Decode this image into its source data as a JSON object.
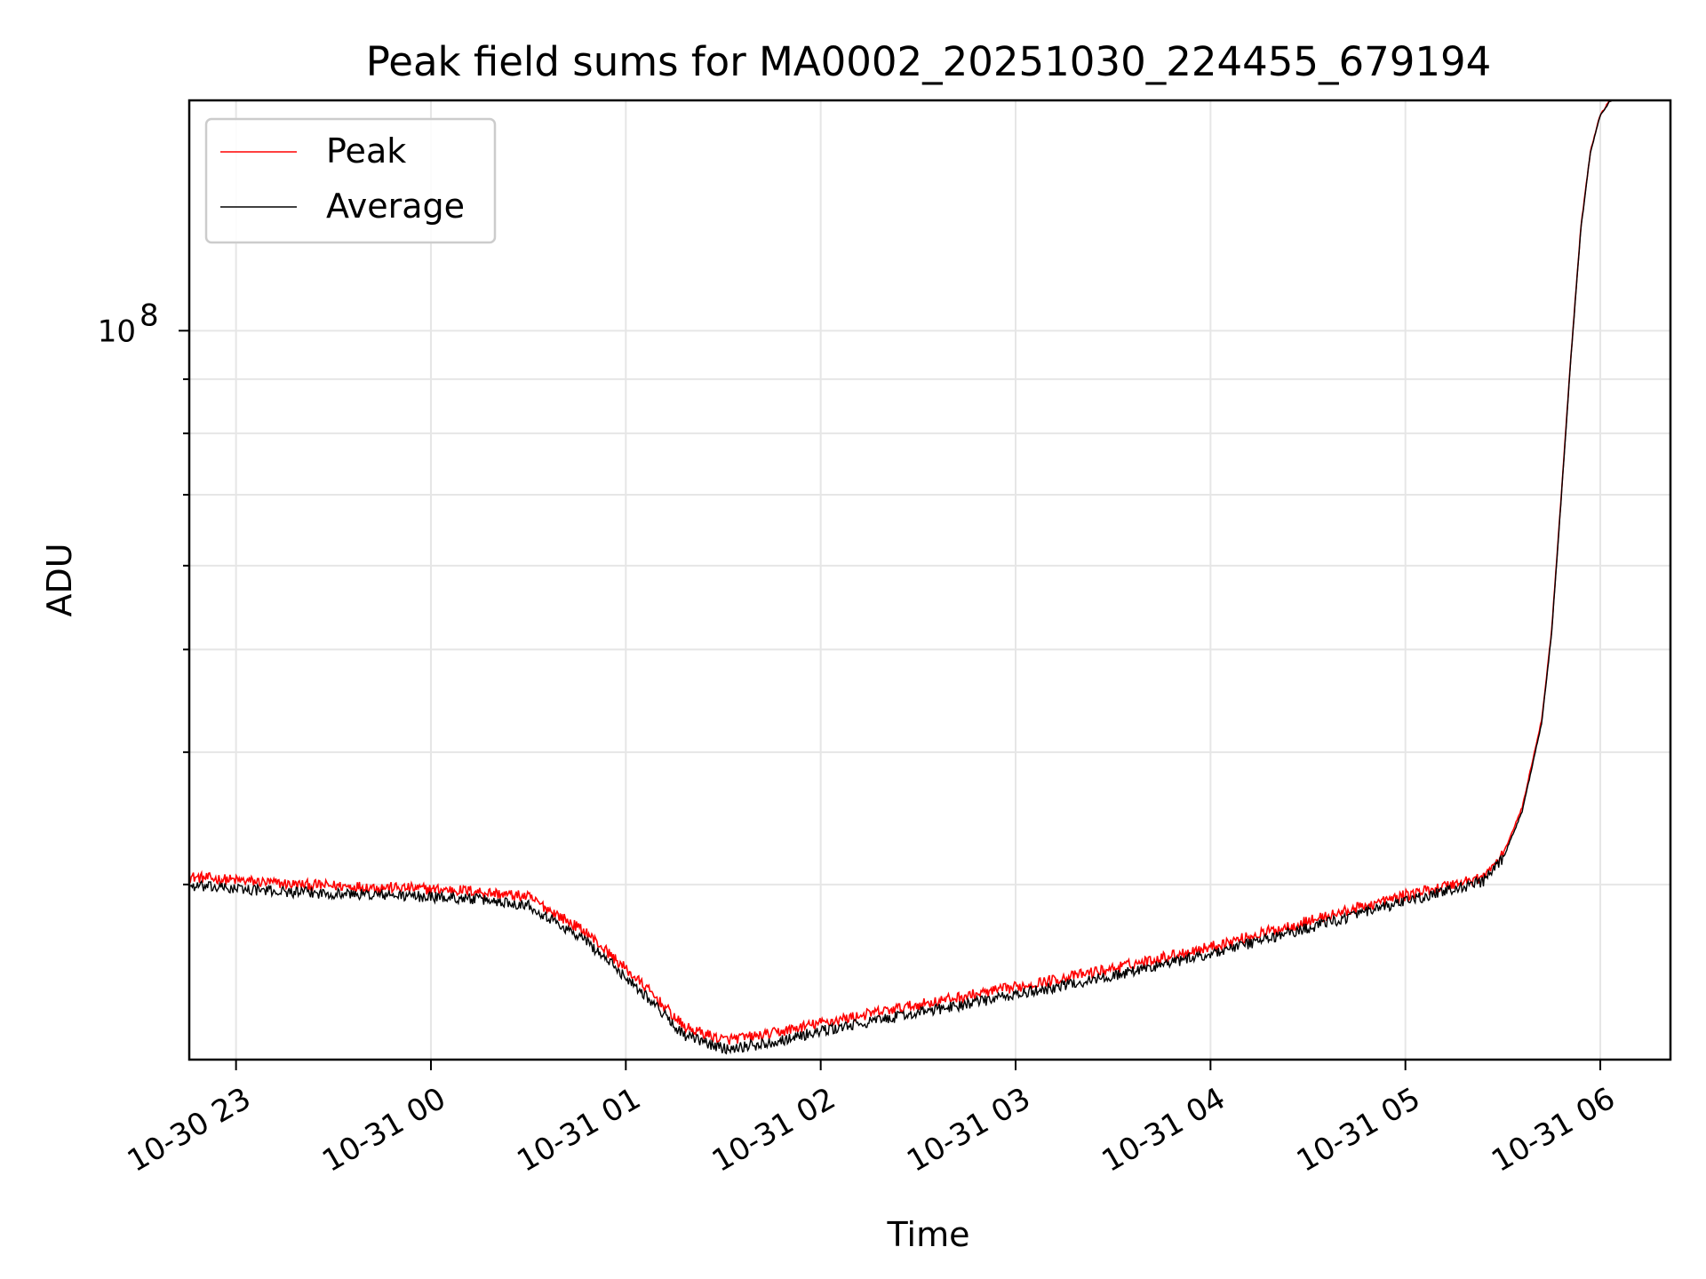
{
  "chart_data": {
    "type": "line",
    "title": "Peak field sums for MA0002_20251030_224455_679194",
    "xlabel": "Time",
    "ylabel": "ADU",
    "yscale": "log",
    "grid": true,
    "legend_position": "top-left",
    "x_range_hours": [
      -0.24,
      7.36
    ],
    "y_range": [
      20500000,
      165000000
    ],
    "x_ticks": [
      {
        "value": 0,
        "label": "10-30 23"
      },
      {
        "value": 1,
        "label": "10-31 00"
      },
      {
        "value": 2,
        "label": "10-31 01"
      },
      {
        "value": 3,
        "label": "10-31 02"
      },
      {
        "value": 4,
        "label": "10-31 03"
      },
      {
        "value": 5,
        "label": "10-31 04"
      },
      {
        "value": 6,
        "label": "10-31 05"
      },
      {
        "value": 7,
        "label": "10-31 06"
      }
    ],
    "y_major_ticks": [
      {
        "value": 100000000,
        "base": "10",
        "exponent": "8"
      }
    ],
    "y_minor_ticks": [
      30000000,
      40000000,
      50000000,
      60000000,
      70000000,
      80000000,
      90000000,
      200000000
    ],
    "series": [
      {
        "name": "Peak",
        "color": "#ff0000",
        "x": [
          -0.24,
          0.3,
          0.8,
          1.2,
          1.5,
          1.8,
          2.1,
          2.3,
          2.5,
          2.7,
          3.0,
          3.5,
          4.0,
          4.5,
          5.0,
          5.5,
          6.0,
          6.4,
          6.5,
          6.6,
          6.7,
          6.75,
          6.8,
          6.85,
          6.9,
          6.95,
          7.0,
          7.05,
          7.08
        ],
        "y": [
          30500000,
          30000000,
          29800000,
          29600000,
          29200000,
          27000000,
          24000000,
          22000000,
          21400000,
          21600000,
          22200000,
          23100000,
          24000000,
          25000000,
          26200000,
          27700000,
          29300000,
          30500000,
          32000000,
          35500000,
          43000000,
          52000000,
          70000000,
          95000000,
          125000000,
          148000000,
          160000000,
          165000000,
          166000000
        ]
      },
      {
        "name": "Average",
        "color": "#000000",
        "x": [
          -0.24,
          0.3,
          0.8,
          1.2,
          1.5,
          1.8,
          2.1,
          2.3,
          2.5,
          2.7,
          3.0,
          3.5,
          4.0,
          4.5,
          5.0,
          5.5,
          6.0,
          6.4,
          6.5,
          6.6,
          6.7,
          6.75,
          6.8,
          6.85,
          6.9,
          6.95,
          7.0,
          7.05,
          7.08
        ],
        "y": [
          29900000,
          29500000,
          29300000,
          29100000,
          28700000,
          26500000,
          23600000,
          21600000,
          21000000,
          21200000,
          21800000,
          22700000,
          23600000,
          24600000,
          25800000,
          27300000,
          28900000,
          30200000,
          31700000,
          35200000,
          42700000,
          51700000,
          69700000,
          94700000,
          124700000,
          147700000,
          159700000,
          164700000,
          165700000
        ]
      }
    ]
  }
}
